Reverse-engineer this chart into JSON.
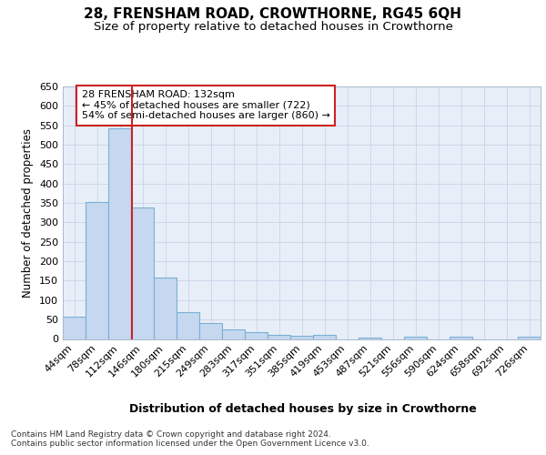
{
  "title": "28, FRENSHAM ROAD, CROWTHORNE, RG45 6QH",
  "subtitle": "Size of property relative to detached houses in Crowthorne",
  "xlabel": "Distribution of detached houses by size in Crowthorne",
  "ylabel": "Number of detached properties",
  "bar_color": "#c5d8f0",
  "bar_edge_color": "#7aafd4",
  "grid_color": "#c8d4e8",
  "bg_color": "#e8eef8",
  "bin_labels": [
    "44sqm",
    "78sqm",
    "112sqm",
    "146sqm",
    "180sqm",
    "215sqm",
    "249sqm",
    "283sqm",
    "317sqm",
    "351sqm",
    "385sqm",
    "419sqm",
    "453sqm",
    "487sqm",
    "521sqm",
    "556sqm",
    "590sqm",
    "624sqm",
    "658sqm",
    "692sqm",
    "726sqm"
  ],
  "bar_values": [
    57,
    353,
    542,
    338,
    157,
    70,
    42,
    25,
    17,
    10,
    8,
    10,
    0,
    4,
    0,
    5,
    0,
    5,
    0,
    0,
    5
  ],
  "ylim": [
    0,
    650
  ],
  "yticks": [
    0,
    50,
    100,
    150,
    200,
    250,
    300,
    350,
    400,
    450,
    500,
    550,
    600,
    650
  ],
  "vline_x": 2.54,
  "vline_color": "#cc2222",
  "annotation_text": "28 FRENSHAM ROAD: 132sqm\n← 45% of detached houses are smaller (722)\n54% of semi-detached houses are larger (860) →",
  "annotation_box_color": "#ffffff",
  "annotation_box_edge": "#cc2222",
  "footer": "Contains HM Land Registry data © Crown copyright and database right 2024.\nContains public sector information licensed under the Open Government Licence v3.0.",
  "title_fontsize": 11,
  "subtitle_fontsize": 9.5,
  "xlabel_fontsize": 9,
  "ylabel_fontsize": 8.5,
  "tick_fontsize": 8,
  "annotation_fontsize": 8,
  "footer_fontsize": 6.5
}
